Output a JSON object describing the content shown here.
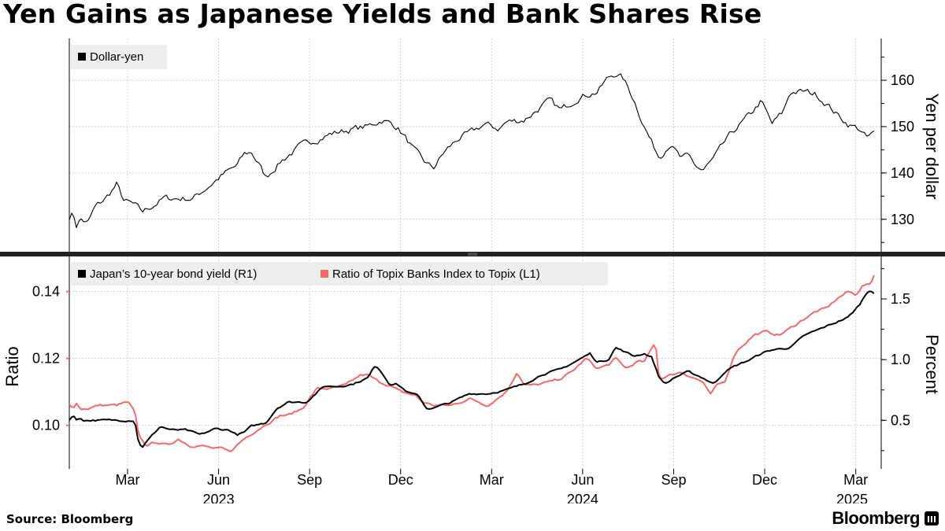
{
  "title": "Yen Gains as Japanese Yields and Bank Shares Rise",
  "footer": {
    "source": "Source: Bloomberg",
    "brand": "Bloomberg"
  },
  "colors": {
    "black": "#000000",
    "red": "#f26a6a",
    "grid": "#cccccc",
    "divider": "#222222"
  },
  "chart_data": [
    {
      "type": "line",
      "title": "Dollar-yen",
      "ylabel": "Yen per dollar",
      "y_axis_side": "right",
      "ylim": [
        123,
        169
      ],
      "yticks": [
        130,
        140,
        150,
        160
      ],
      "x_range": [
        2023.0,
        2025.23
      ],
      "legend_position": "top-left",
      "series": [
        {
          "name": "Dollar-yen",
          "color": "#000000",
          "noise": 0.8,
          "points": [
            [
              2023.0,
              130.5
            ],
            [
              2023.01,
              131.5
            ],
            [
              2023.02,
              128.5
            ],
            [
              2023.03,
              130.2
            ],
            [
              2023.05,
              129.0
            ],
            [
              2023.07,
              132.5
            ],
            [
              2023.1,
              134.5
            ],
            [
              2023.13,
              137.5
            ],
            [
              2023.15,
              134.0
            ],
            [
              2023.18,
              133.0
            ],
            [
              2023.2,
              131.5
            ],
            [
              2023.23,
              133.0
            ],
            [
              2023.26,
              134.5
            ],
            [
              2023.3,
              134.5
            ],
            [
              2023.34,
              134.5
            ],
            [
              2023.38,
              137.0
            ],
            [
              2023.42,
              139.5
            ],
            [
              2023.46,
              141.5
            ],
            [
              2023.48,
              144.0
            ],
            [
              2023.5,
              144.5
            ],
            [
              2023.52,
              142.0
            ],
            [
              2023.54,
              139.0
            ],
            [
              2023.58,
              142.5
            ],
            [
              2023.63,
              145.5
            ],
            [
              2023.67,
              147.0
            ],
            [
              2023.72,
              148.5
            ],
            [
              2023.78,
              149.5
            ],
            [
              2023.82,
              150.0
            ],
            [
              2023.86,
              151.5
            ],
            [
              2023.9,
              150.0
            ],
            [
              2023.92,
              148.0
            ],
            [
              2023.95,
              144.5
            ],
            [
              2023.98,
              142.0
            ],
            [
              2024.0,
              141.0
            ],
            [
              2024.03,
              144.5
            ],
            [
              2024.07,
              147.5
            ],
            [
              2024.1,
              148.5
            ],
            [
              2024.14,
              150.5
            ],
            [
              2024.18,
              149.5
            ],
            [
              2024.2,
              151.0
            ],
            [
              2024.25,
              151.5
            ],
            [
              2024.3,
              154.5
            ],
            [
              2024.32,
              155.5
            ],
            [
              2024.35,
              153.5
            ],
            [
              2024.4,
              156.5
            ],
            [
              2024.45,
              157.5
            ],
            [
              2024.48,
              160.5
            ],
            [
              2024.5,
              161.5
            ],
            [
              2024.52,
              160.5
            ],
            [
              2024.55,
              156.0
            ],
            [
              2024.58,
              150.0
            ],
            [
              2024.6,
              146.5
            ],
            [
              2024.62,
              143.5
            ],
            [
              2024.65,
              146.5
            ],
            [
              2024.68,
              143.0
            ],
            [
              2024.7,
              143.5
            ],
            [
              2024.72,
              141.5
            ],
            [
              2024.74,
              140.5
            ],
            [
              2024.77,
              143.0
            ],
            [
              2024.8,
              146.5
            ],
            [
              2024.83,
              149.5
            ],
            [
              2024.87,
              152.5
            ],
            [
              2024.9,
              155.5
            ],
            [
              2024.93,
              150.5
            ],
            [
              2024.96,
              153.0
            ],
            [
              2024.98,
              157.5
            ],
            [
              2025.02,
              157.5
            ],
            [
              2025.05,
              157.0
            ],
            [
              2025.08,
              155.0
            ],
            [
              2025.11,
              152.5
            ],
            [
              2025.14,
              150.5
            ],
            [
              2025.17,
              149.5
            ],
            [
              2025.19,
              147.5
            ],
            [
              2025.21,
              148.5
            ]
          ]
        }
      ]
    },
    {
      "type": "line",
      "ylabel_left": "Ratio",
      "ylabel_right": "Percent",
      "ylim_left": [
        0.087,
        0.1505
      ],
      "ylim_right": [
        0.1,
        1.85
      ],
      "yticks_left": [
        0.1,
        0.12,
        0.14
      ],
      "yticks_right": [
        0.5,
        1.0,
        1.5
      ],
      "x_range": [
        2023.0,
        2025.23
      ],
      "legend_position": "top-left",
      "series": [
        {
          "name": "Japan’s 10-year bond yield (R1)",
          "axis": "right",
          "color": "#000000",
          "noise": 0.008,
          "points": [
            [
              2023.0,
              0.5
            ],
            [
              2023.01,
              0.55
            ],
            [
              2023.02,
              0.5
            ],
            [
              2023.03,
              0.52
            ],
            [
              2023.04,
              0.5
            ],
            [
              2023.05,
              0.5
            ],
            [
              2023.07,
              0.5
            ],
            [
              2023.09,
              0.5
            ],
            [
              2023.12,
              0.5
            ],
            [
              2023.15,
              0.5
            ],
            [
              2023.18,
              0.5
            ],
            [
              2023.19,
              0.32
            ],
            [
              2023.2,
              0.28
            ],
            [
              2023.22,
              0.35
            ],
            [
              2023.25,
              0.45
            ],
            [
              2023.28,
              0.42
            ],
            [
              2023.32,
              0.42
            ],
            [
              2023.36,
              0.38
            ],
            [
              2023.4,
              0.43
            ],
            [
              2023.44,
              0.42
            ],
            [
              2023.46,
              0.38
            ],
            [
              2023.48,
              0.4
            ],
            [
              2023.5,
              0.45
            ],
            [
              2023.54,
              0.48
            ],
            [
              2023.57,
              0.6
            ],
            [
              2023.6,
              0.65
            ],
            [
              2023.65,
              0.65
            ],
            [
              2023.7,
              0.78
            ],
            [
              2023.74,
              0.78
            ],
            [
              2023.78,
              0.8
            ],
            [
              2023.82,
              0.85
            ],
            [
              2023.84,
              0.95
            ],
            [
              2023.85,
              0.93
            ],
            [
              2023.88,
              0.8
            ],
            [
              2023.9,
              0.8
            ],
            [
              2023.93,
              0.73
            ],
            [
              2023.96,
              0.7
            ],
            [
              2023.98,
              0.6
            ],
            [
              2024.0,
              0.6
            ],
            [
              2024.05,
              0.65
            ],
            [
              2024.1,
              0.72
            ],
            [
              2024.15,
              0.72
            ],
            [
              2024.2,
              0.75
            ],
            [
              2024.25,
              0.8
            ],
            [
              2024.3,
              0.88
            ],
            [
              2024.35,
              0.92
            ],
            [
              2024.4,
              1.0
            ],
            [
              2024.43,
              1.05
            ],
            [
              2024.45,
              0.98
            ],
            [
              2024.48,
              1.0
            ],
            [
              2024.5,
              1.1
            ],
            [
              2024.55,
              1.03
            ],
            [
              2024.58,
              1.05
            ],
            [
              2024.6,
              1.02
            ],
            [
              2024.62,
              0.85
            ],
            [
              2024.64,
              0.8
            ],
            [
              2024.66,
              0.85
            ],
            [
              2024.7,
              0.9
            ],
            [
              2024.74,
              0.85
            ],
            [
              2024.77,
              0.8
            ],
            [
              2024.8,
              0.9
            ],
            [
              2024.83,
              0.95
            ],
            [
              2024.87,
              1.0
            ],
            [
              2024.9,
              1.05
            ],
            [
              2024.93,
              1.08
            ],
            [
              2024.98,
              1.1
            ],
            [
              2025.02,
              1.2
            ],
            [
              2025.06,
              1.25
            ],
            [
              2025.1,
              1.3
            ],
            [
              2025.14,
              1.35
            ],
            [
              2025.17,
              1.45
            ],
            [
              2025.19,
              1.55
            ],
            [
              2025.2,
              1.58
            ],
            [
              2025.21,
              1.55
            ]
          ]
        },
        {
          "name": "Ratio of Topix Banks Index to Topix (L1)",
          "axis": "left",
          "color": "#f26a6a",
          "noise": 0.0004,
          "points": [
            [
              2023.0,
              0.106
            ],
            [
              2023.01,
              0.105
            ],
            [
              2023.02,
              0.107
            ],
            [
              2023.03,
              0.105
            ],
            [
              2023.05,
              0.105
            ],
            [
              2023.08,
              0.106
            ],
            [
              2023.1,
              0.106
            ],
            [
              2023.13,
              0.106
            ],
            [
              2023.16,
              0.107
            ],
            [
              2023.18,
              0.104
            ],
            [
              2023.19,
              0.097
            ],
            [
              2023.21,
              0.094
            ],
            [
              2023.24,
              0.095
            ],
            [
              2023.27,
              0.094
            ],
            [
              2023.3,
              0.096
            ],
            [
              2023.33,
              0.094
            ],
            [
              2023.36,
              0.094
            ],
            [
              2023.4,
              0.093
            ],
            [
              2023.42,
              0.093
            ],
            [
              2023.44,
              0.092
            ],
            [
              2023.46,
              0.094
            ],
            [
              2023.48,
              0.096
            ],
            [
              2023.52,
              0.099
            ],
            [
              2023.55,
              0.101
            ],
            [
              2023.58,
              0.103
            ],
            [
              2023.6,
              0.103
            ],
            [
              2023.64,
              0.105
            ],
            [
              2023.68,
              0.111
            ],
            [
              2023.72,
              0.111
            ],
            [
              2023.76,
              0.112
            ],
            [
              2023.8,
              0.115
            ],
            [
              2023.82,
              0.115
            ],
            [
              2023.85,
              0.113
            ],
            [
              2023.88,
              0.112
            ],
            [
              2023.91,
              0.11
            ],
            [
              2023.95,
              0.109
            ],
            [
              2023.97,
              0.107
            ],
            [
              2024.0,
              0.106
            ],
            [
              2024.05,
              0.106
            ],
            [
              2024.1,
              0.108
            ],
            [
              2024.15,
              0.106
            ],
            [
              2024.2,
              0.11
            ],
            [
              2024.23,
              0.116
            ],
            [
              2024.25,
              0.112
            ],
            [
              2024.28,
              0.112
            ],
            [
              2024.32,
              0.113
            ],
            [
              2024.35,
              0.114
            ],
            [
              2024.38,
              0.116
            ],
            [
              2024.42,
              0.12
            ],
            [
              2024.45,
              0.117
            ],
            [
              2024.48,
              0.118
            ],
            [
              2024.5,
              0.12
            ],
            [
              2024.53,
              0.117
            ],
            [
              2024.56,
              0.119
            ],
            [
              2024.58,
              0.119
            ],
            [
              2024.6,
              0.123
            ],
            [
              2024.61,
              0.125
            ],
            [
              2024.62,
              0.114
            ],
            [
              2024.65,
              0.115
            ],
            [
              2024.68,
              0.116
            ],
            [
              2024.72,
              0.114
            ],
            [
              2024.74,
              0.113
            ],
            [
              2024.76,
              0.109
            ],
            [
              2024.78,
              0.112
            ],
            [
              2024.8,
              0.113
            ],
            [
              2024.83,
              0.122
            ],
            [
              2024.86,
              0.125
            ],
            [
              2024.88,
              0.127
            ],
            [
              2024.91,
              0.128
            ],
            [
              2024.95,
              0.127
            ],
            [
              2024.98,
              0.129
            ],
            [
              2025.02,
              0.132
            ],
            [
              2025.05,
              0.134
            ],
            [
              2025.08,
              0.135
            ],
            [
              2025.11,
              0.138
            ],
            [
              2025.14,
              0.14
            ],
            [
              2025.16,
              0.139
            ],
            [
              2025.18,
              0.142
            ],
            [
              2025.2,
              0.142
            ],
            [
              2025.21,
              0.145
            ]
          ]
        }
      ]
    }
  ],
  "x_axis": {
    "months": [
      {
        "label": "Mar",
        "t": 2023.16
      },
      {
        "label": "Jun",
        "t": 2023.41
      },
      {
        "label": "Sep",
        "t": 2023.66
      },
      {
        "label": "Dec",
        "t": 2023.91
      },
      {
        "label": "Mar",
        "t": 2024.16
      },
      {
        "label": "Jun",
        "t": 2024.41
      },
      {
        "label": "Sep",
        "t": 2024.66
      },
      {
        "label": "Dec",
        "t": 2024.91
      },
      {
        "label": "Mar",
        "t": 2025.16
      }
    ],
    "years": [
      {
        "label": "2023",
        "t": 2023.41
      },
      {
        "label": "2024",
        "t": 2024.41
      },
      {
        "label": "2025",
        "t": 2025.15
      }
    ]
  }
}
